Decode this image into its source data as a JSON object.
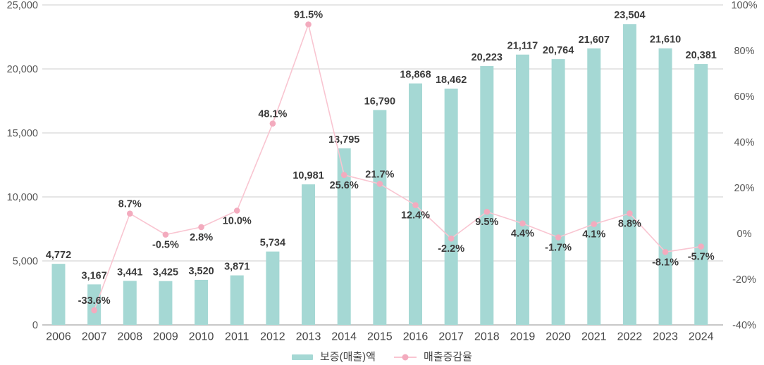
{
  "chart_data": {
    "type": "bar+line combo",
    "categories": [
      "2006",
      "2007",
      "2008",
      "2009",
      "2010",
      "2011",
      "2012",
      "2013",
      "2014",
      "2015",
      "2016",
      "2017",
      "2018",
      "2019",
      "2020",
      "2021",
      "2022",
      "2023",
      "2024"
    ],
    "series": [
      {
        "name": "보증(매출)액",
        "type": "bar",
        "axis": "left",
        "color": "#a5d8d4",
        "values": [
          4772,
          3167,
          3441,
          3425,
          3520,
          3871,
          5734,
          10981,
          13795,
          16790,
          18868,
          18462,
          20223,
          21117,
          20764,
          21607,
          23504,
          21610,
          20381
        ],
        "labels": [
          "4,772",
          "3,167",
          "3,441",
          "3,425",
          "3,520",
          "3,871",
          "5,734",
          "10,981",
          "13,795",
          "16,790",
          "18,868",
          "18,462",
          "20,223",
          "21,117",
          "20,764",
          "21,607",
          "23,504",
          "21,610",
          "20,381"
        ]
      },
      {
        "name": "매출증감율",
        "type": "line",
        "axis": "right",
        "color": "#f9c5d1",
        "marker_color": "#f3abbe",
        "values": [
          null,
          -33.6,
          8.7,
          -0.5,
          2.8,
          10.0,
          48.1,
          91.5,
          25.6,
          21.7,
          12.4,
          -2.2,
          9.5,
          4.4,
          -1.7,
          4.1,
          8.8,
          -8.1,
          -5.7
        ],
        "labels": [
          null,
          "-33.6%",
          "8.7%",
          "-0.5%",
          "2.8%",
          "10.0%",
          "48.1%",
          "91.5%",
          "25.6%",
          "21.7%",
          "12.4%",
          "-2.2%",
          "9.5%",
          "4.4%",
          "-1.7%",
          "4.1%",
          "8.8%",
          "-8.1%",
          "-5.7%"
        ],
        "label_position": [
          null,
          "above",
          "above",
          "below",
          "below",
          "below",
          "above",
          "above",
          "below",
          "above",
          "below",
          "below",
          "below",
          "below",
          "below",
          "below",
          "below",
          "below",
          "below"
        ]
      }
    ],
    "left_axis": {
      "min": 0,
      "max": 25000,
      "ticks": [
        "25,000",
        "20,000",
        "15,000",
        "10,000",
        "5,000",
        "0"
      ]
    },
    "right_axis": {
      "min": -40,
      "max": 100,
      "ticks": [
        "100%",
        "80%",
        "60%",
        "40%",
        "20%",
        "0%",
        "-20%",
        "-40%"
      ]
    },
    "grid": "horizontal-only",
    "legend_position": "bottom-center",
    "colors": {
      "gridline": "#cdcdcd",
      "axis_line": "#b5b5b5",
      "tick_text": "#555555",
      "data_label_text": "#3a3a3a"
    }
  }
}
